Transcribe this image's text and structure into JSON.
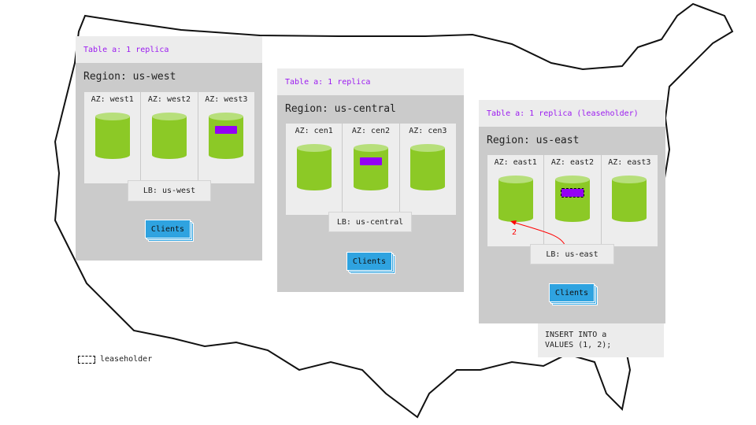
{
  "regions": [
    {
      "table_label": "Table a: 1 replica",
      "title": "Region: us-west",
      "azs": [
        "AZ: west1",
        "AZ: west2",
        "AZ: west3"
      ],
      "lb": "LB: us-west",
      "clients": "Clients"
    },
    {
      "table_label": "Table a: 1 replica",
      "title": "Region: us-central",
      "azs": [
        "AZ: cen1",
        "AZ: cen2",
        "AZ: cen3"
      ],
      "lb": "LB: us-central",
      "clients": "Clients"
    },
    {
      "table_label": "Table a: 1 replica (leaseholder)",
      "title": "Region: us-east",
      "azs": [
        "AZ: east1",
        "AZ: east2",
        "AZ: east3"
      ],
      "lb": "LB: us-east",
      "clients": "Clients",
      "arrow_label": "2"
    }
  ],
  "sql": "INSERT INTO a\nVALUES (1, 2);",
  "legend": {
    "label": "leaseholder"
  },
  "colors": {
    "replica": "#9400f5",
    "node": "#8cc926",
    "clients": "#2fa3e0",
    "region": "#cbcbcb",
    "arrow": "#ff0000"
  }
}
